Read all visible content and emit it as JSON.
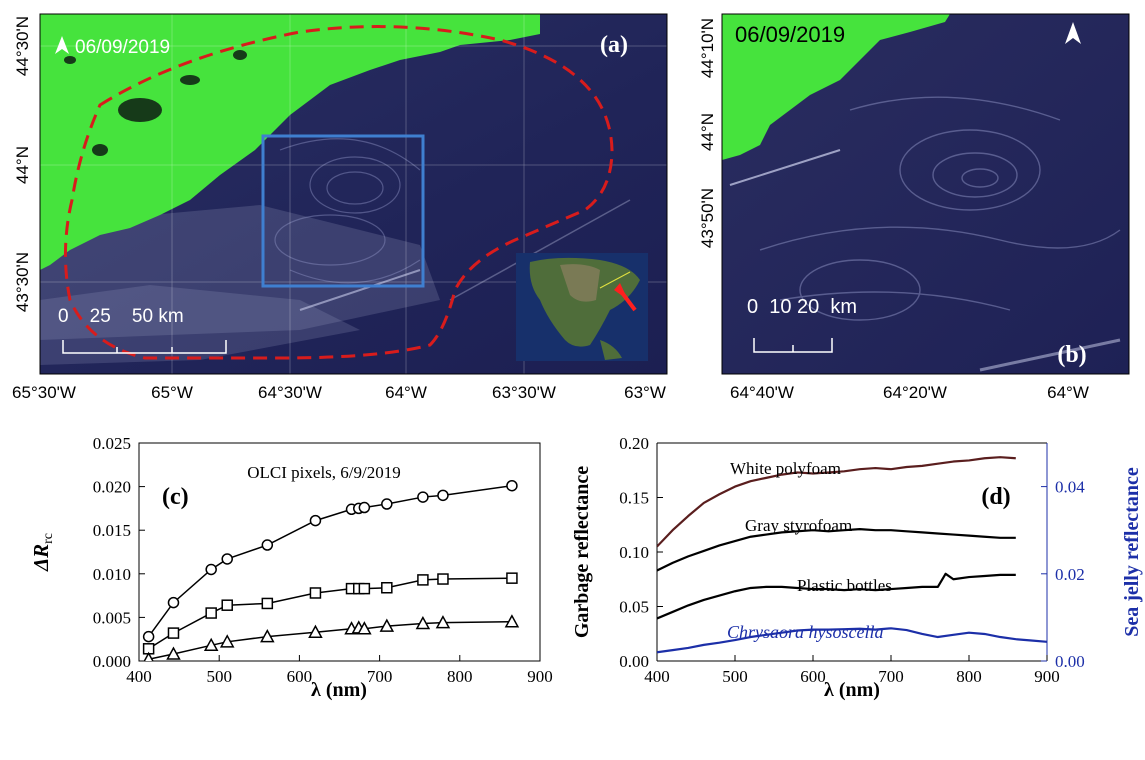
{
  "panels": {
    "a": {
      "label": "(a)",
      "date": "06/09/2019",
      "lat_labels": [
        "44°30'N",
        "44°N",
        "43°30'N"
      ],
      "lon_labels": [
        "65°30'W",
        "65°W",
        "64°30'W",
        "64°W",
        "63°30'W",
        "63°W"
      ],
      "scale_label": "0    25    50 km"
    },
    "b": {
      "label": "(b)",
      "date": "06/09/2019",
      "lat_labels": [
        "44°10'N",
        "44°N",
        "43°50'N"
      ],
      "lon_labels": [
        "64°40'W",
        "64°20'W",
        "64°W"
      ],
      "scale_label": "0  10 20  km"
    }
  },
  "colors": {
    "land": "#45e63c",
    "ocean": "#22245a",
    "boundary": "#d81c1c",
    "box": "#3f7fd0",
    "jelly_axis": "#1c2fa8",
    "polyfoam": "#5a1e1e"
  },
  "chart_data": [
    {
      "panel": "(c)",
      "type": "line",
      "title": "OLCI pixels, 6/9/2019",
      "xlabel": "λ (nm)",
      "ylabel": "ΔR",
      "ylabel_sub": "rc",
      "xlim": [
        400,
        900
      ],
      "ylim": [
        0,
        0.025
      ],
      "xticks": [
        "400",
        "500",
        "600",
        "700",
        "800",
        "900"
      ],
      "yticks": [
        "0.000",
        "0.005",
        "0.010",
        "0.015",
        "0.020",
        "0.025"
      ],
      "x": [
        412,
        443,
        490,
        510,
        560,
        620,
        665,
        674,
        681,
        709,
        754,
        779,
        865
      ],
      "series": [
        {
          "marker": "circle",
          "values": [
            0.0028,
            0.0067,
            0.0105,
            0.0117,
            0.0133,
            0.0161,
            0.0174,
            0.0175,
            0.0176,
            0.018,
            0.0188,
            0.019,
            0.0201
          ]
        },
        {
          "marker": "square",
          "values": [
            0.0014,
            0.0032,
            0.0055,
            0.0064,
            0.0066,
            0.0078,
            0.0083,
            0.0083,
            0.0083,
            0.0084,
            0.0093,
            0.0094,
            0.0095
          ]
        },
        {
          "marker": "triangle",
          "values": [
            0.0002,
            0.0008,
            0.0018,
            0.0022,
            0.0028,
            0.0033,
            0.0037,
            0.0038,
            0.0037,
            0.004,
            0.0043,
            0.0044,
            0.0045
          ]
        }
      ]
    },
    {
      "panel": "(d)",
      "type": "line",
      "xlabel": "λ (nm)",
      "ylabel": "Garbage reflectance",
      "y2label": "Sea jelly reflectance",
      "xlim": [
        400,
        900
      ],
      "ylim": [
        0,
        0.2
      ],
      "y2lim": [
        0,
        0.05
      ],
      "xticks": [
        "400",
        "500",
        "600",
        "700",
        "800",
        "900"
      ],
      "yticks": [
        "0.00",
        "0.05",
        "0.10",
        "0.15",
        "0.20"
      ],
      "y2ticks": [
        "0.00",
        "0.02",
        "0.04"
      ],
      "series": [
        {
          "name": "White polyfoam",
          "axis": "left",
          "x": [
            400,
            420,
            440,
            460,
            480,
            500,
            520,
            540,
            560,
            580,
            600,
            620,
            640,
            660,
            680,
            700,
            720,
            740,
            760,
            780,
            800,
            820,
            840,
            860
          ],
          "values": [
            0.105,
            0.12,
            0.133,
            0.145,
            0.153,
            0.16,
            0.165,
            0.168,
            0.171,
            0.173,
            0.172,
            0.173,
            0.174,
            0.176,
            0.177,
            0.176,
            0.178,
            0.179,
            0.181,
            0.183,
            0.184,
            0.186,
            0.187,
            0.186
          ]
        },
        {
          "name": "Gray styrofoam",
          "axis": "left",
          "x": [
            400,
            420,
            440,
            460,
            480,
            500,
            520,
            540,
            560,
            580,
            600,
            620,
            640,
            660,
            680,
            700,
            720,
            740,
            760,
            780,
            800,
            820,
            840,
            860
          ],
          "values": [
            0.083,
            0.09,
            0.096,
            0.101,
            0.106,
            0.11,
            0.114,
            0.116,
            0.118,
            0.119,
            0.12,
            0.119,
            0.12,
            0.121,
            0.12,
            0.12,
            0.119,
            0.118,
            0.117,
            0.116,
            0.115,
            0.114,
            0.113,
            0.113
          ]
        },
        {
          "name": "Plastic bottles",
          "axis": "left",
          "x": [
            400,
            420,
            440,
            460,
            480,
            500,
            520,
            540,
            560,
            580,
            600,
            620,
            640,
            660,
            680,
            700,
            720,
            740,
            760,
            770,
            780,
            800,
            820,
            840,
            860
          ],
          "values": [
            0.039,
            0.045,
            0.051,
            0.056,
            0.06,
            0.064,
            0.067,
            0.068,
            0.068,
            0.067,
            0.066,
            0.066,
            0.065,
            0.066,
            0.065,
            0.066,
            0.067,
            0.068,
            0.068,
            0.08,
            0.075,
            0.077,
            0.078,
            0.079,
            0.079
          ]
        },
        {
          "name": "Chrysaora hysoscella",
          "axis": "right",
          "x": [
            400,
            420,
            440,
            460,
            480,
            500,
            520,
            540,
            560,
            580,
            600,
            620,
            640,
            660,
            680,
            700,
            720,
            740,
            760,
            780,
            800,
            820,
            840,
            860,
            880,
            900
          ],
          "values": [
            0.002,
            0.0025,
            0.003,
            0.0037,
            0.0042,
            0.0048,
            0.0055,
            0.006,
            0.0065,
            0.007,
            0.0072,
            0.0072,
            0.0073,
            0.0074,
            0.0072,
            0.0075,
            0.0071,
            0.0062,
            0.0055,
            0.006,
            0.0065,
            0.0062,
            0.0055,
            0.005,
            0.0047,
            0.0044
          ]
        }
      ]
    }
  ]
}
